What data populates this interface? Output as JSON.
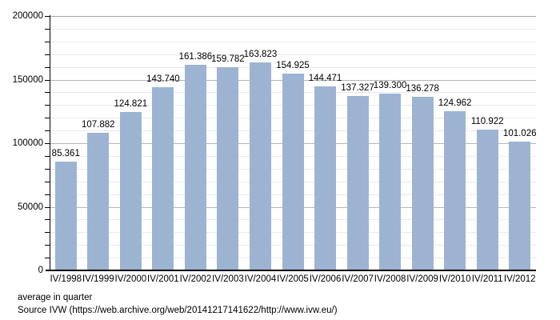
{
  "chart_data": {
    "type": "bar",
    "title": "",
    "xlabel": "",
    "ylabel": "",
    "categories": [
      "IV/1998",
      "IV/1999",
      "IV/2000",
      "IV/2001",
      "IV/2002",
      "IV/2003",
      "IV/2004",
      "IV/2005",
      "IV/2006",
      "IV/2007",
      "IV/2008",
      "IV/2009",
      "IV/2010",
      "IV/2011",
      "IV/2012"
    ],
    "values": [
      85361,
      107882,
      124821,
      143740,
      161386,
      159782,
      163823,
      154925,
      144471,
      137327,
      139300,
      136278,
      124962,
      110922,
      101026
    ],
    "value_labels": [
      "85.361",
      "107.882",
      "124.821",
      "143.740",
      "161.386",
      "159.782",
      "163.823",
      "154.925",
      "144.471",
      "137.327",
      "139.300",
      "136.278",
      "124.962",
      "110.922",
      "101.026"
    ],
    "ylim": [
      0,
      200000
    ],
    "y_major_ticks": [
      0,
      50000,
      100000,
      150000,
      200000
    ],
    "y_major_tick_labels": [
      "0",
      "50000",
      "100000",
      "150000",
      "200000"
    ],
    "y_minor_step": 10000,
    "grid": "on",
    "legend": "none"
  },
  "footer": {
    "note": "average in quarter",
    "source": "Source IVW (https://web.archive.org/web/20141217141622/http://www.ivw.eu/)"
  },
  "colors": {
    "bar": "#9cb4d2",
    "grid_top": "#a6a6a6",
    "grid_major": "#b5b5b5",
    "grid_minor": "#e9e9e9",
    "axis": "#000000",
    "text": "#000000",
    "background": "#ffffff"
  }
}
